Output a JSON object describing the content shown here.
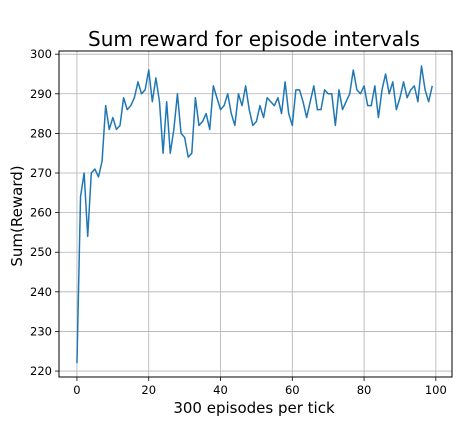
{
  "chart_data": {
    "type": "line",
    "title": "Sum reward for episode intervals",
    "xlabel": "300 episodes per tick",
    "ylabel": "Sum(Reward)",
    "xlim": [
      -5,
      104.5
    ],
    "ylim": [
      218.5,
      300.8
    ],
    "xticks": [
      0,
      20,
      40,
      60,
      80,
      100
    ],
    "yticks": [
      220,
      230,
      240,
      250,
      260,
      270,
      280,
      290,
      300
    ],
    "grid": true,
    "line_color": "#1f77b4",
    "series": [
      {
        "x": [
          0,
          1,
          2,
          3,
          4,
          5,
          6,
          7,
          8,
          9,
          10,
          11,
          12,
          13,
          14,
          15,
          16,
          17,
          18,
          19,
          20,
          21,
          22,
          23,
          24,
          25,
          26,
          27,
          28,
          29,
          30,
          31,
          32,
          33,
          34,
          35,
          36,
          37,
          38,
          39,
          40,
          41,
          42,
          43,
          44,
          45,
          46,
          47,
          48,
          49,
          50,
          51,
          52,
          53,
          54,
          55,
          56,
          57,
          58,
          59,
          60,
          61,
          62,
          63,
          64,
          65,
          66,
          67,
          68,
          69,
          70,
          71,
          72,
          73,
          74,
          75,
          76,
          77,
          78,
          79,
          80,
          81,
          82,
          83,
          84,
          85,
          86,
          87,
          88,
          89,
          90,
          91,
          92,
          93,
          94,
          95,
          96,
          97,
          98,
          99
        ],
        "values": [
          222,
          264,
          270,
          254,
          270,
          271,
          269,
          273,
          287,
          281,
          284,
          281,
          282,
          289,
          286,
          287,
          289,
          293,
          290,
          291,
          296,
          288,
          294,
          288,
          275,
          288,
          275,
          281,
          290,
          280,
          279,
          274,
          275,
          289,
          282,
          283,
          285,
          281,
          292,
          289,
          286,
          287,
          290,
          285,
          282,
          290,
          287,
          292,
          286,
          282,
          283,
          287,
          284,
          289,
          288,
          287,
          289,
          285,
          293,
          285,
          282,
          291,
          291,
          288,
          284,
          288,
          292,
          286,
          286,
          291,
          290,
          290,
          282,
          291,
          286,
          288,
          290,
          296,
          291,
          290,
          292,
          287,
          287,
          292,
          284,
          291,
          295,
          290,
          293,
          286,
          289,
          293,
          289,
          291,
          292,
          288,
          297,
          291,
          288,
          292
        ]
      }
    ]
  }
}
